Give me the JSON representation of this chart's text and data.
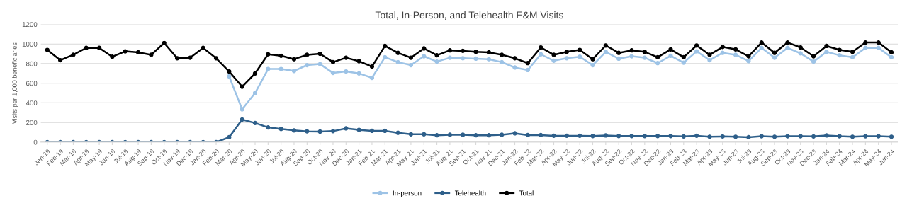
{
  "chart_data": {
    "type": "line",
    "title": "Total, In-Person, and Telehealth E&M Visits",
    "ylabel": "Visits per 1,000 beneficiaries",
    "categories": [
      "Jan-19",
      "Feb-19",
      "Mar-19",
      "Apr-19",
      "May-19",
      "Jun-19",
      "Jul-19",
      "Aug-19",
      "Sep-19",
      "Oct-19",
      "Nov-19",
      "Dec-19",
      "Jan-20",
      "Feb-20",
      "Mar-20",
      "Apr-20",
      "May-20",
      "Jun-20",
      "Jul-20",
      "Aug-20",
      "Sep-20",
      "Oct-20",
      "Nov-20",
      "Dec-20",
      "Jan-21",
      "Feb-21",
      "Mar-21",
      "Apr-21",
      "May-21",
      "Jun-21",
      "Jul-21",
      "Aug-21",
      "Sep-21",
      "Oct-21",
      "Nov-21",
      "Dec-21",
      "Jan-22",
      "Feb-22",
      "Mar-22",
      "Apr-22",
      "May-22",
      "Jun-22",
      "Jul-22",
      "Aug-22",
      "Sep-22",
      "Oct-22",
      "Nov-22",
      "Dec-22",
      "Jan-23",
      "Feb-23",
      "Mar-23",
      "Apr-23",
      "May-23",
      "Jun-23",
      "Jul-23",
      "Aug-23",
      "Sep-23",
      "Oct-23",
      "Nov-23",
      "Dec-23",
      "Jan-24",
      "Feb-24",
      "Mar-24",
      "Apr-24",
      "May-24",
      "Jun-24"
    ],
    "series": [
      {
        "name": "In-person",
        "color": "#9dc3e6",
        "values": [
          null,
          null,
          null,
          null,
          null,
          null,
          null,
          null,
          null,
          null,
          null,
          null,
          null,
          null,
          670,
          335,
          500,
          745,
          745,
          725,
          785,
          795,
          705,
          720,
          700,
          655,
          865,
          815,
          785,
          875,
          820,
          860,
          855,
          850,
          845,
          815,
          760,
          735,
          895,
          830,
          855,
          870,
          785,
          920,
          850,
          875,
          860,
          805,
          880,
          810,
          925,
          835,
          910,
          890,
          825,
          960,
          860,
          960,
          905,
          820,
          920,
          885,
          865,
          960,
          960,
          865
        ]
      },
      {
        "name": "Telehealth",
        "color": "#2e5f8a",
        "values": [
          0,
          0,
          0,
          0,
          0,
          0,
          0,
          0,
          0,
          0,
          0,
          0,
          0,
          0,
          50,
          230,
          195,
          150,
          135,
          120,
          110,
          108,
          112,
          140,
          125,
          115,
          115,
          95,
          80,
          80,
          70,
          75,
          75,
          70,
          70,
          75,
          90,
          72,
          72,
          65,
          65,
          65,
          62,
          68,
          62,
          62,
          62,
          62,
          62,
          58,
          65,
          55,
          58,
          55,
          50,
          60,
          55,
          60,
          60,
          58,
          68,
          60,
          55,
          60,
          60,
          55
        ]
      },
      {
        "name": "Total",
        "color": "#000000",
        "values": [
          940,
          835,
          890,
          960,
          960,
          870,
          925,
          915,
          890,
          1010,
          855,
          860,
          960,
          855,
          720,
          565,
          700,
          895,
          880,
          845,
          890,
          900,
          815,
          860,
          825,
          770,
          980,
          910,
          860,
          955,
          885,
          935,
          930,
          920,
          915,
          890,
          855,
          805,
          965,
          890,
          920,
          940,
          845,
          985,
          910,
          935,
          920,
          865,
          945,
          865,
          985,
          890,
          970,
          945,
          875,
          1015,
          910,
          1015,
          965,
          875,
          980,
          940,
          920,
          1015,
          1015,
          915
        ]
      }
    ],
    "ylim": [
      0,
      1200
    ],
    "yticks": [
      0,
      200,
      400,
      600,
      800,
      1000,
      1200
    ],
    "grid": "y",
    "legend": "bottom",
    "marker": "circle",
    "line_style": "solid"
  }
}
